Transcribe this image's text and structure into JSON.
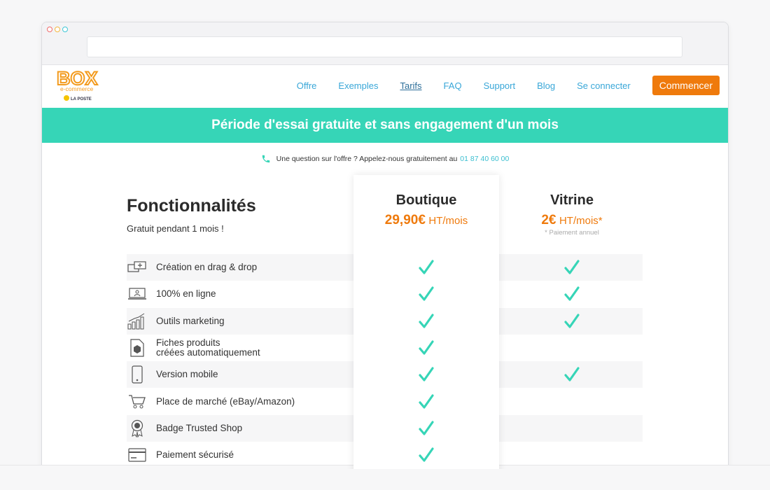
{
  "nav": {
    "logo_brand": "BOX",
    "logo_sub": "e-commerce",
    "logo_partner": "LA POSTE",
    "links": [
      "Offre",
      "Exemples",
      "Tarifs",
      "FAQ",
      "Support",
      "Blog",
      "Se connecter"
    ],
    "active_link": "Tarifs",
    "cta": "Commencer"
  },
  "banner": {
    "text": "Période d'essai gratuite et sans engagement d'un mois"
  },
  "contact": {
    "text": "Une question sur l'offre ? Appelez-nous gratuitement au",
    "phone": "01 87 40 60 00"
  },
  "features": {
    "title": "Fonctionnalités",
    "subtitle": "Gratuit pendant 1 mois !",
    "rows": [
      {
        "label": "Création en drag & drop",
        "icon": "drag-drop-icon",
        "boutique": true,
        "vitrine": true
      },
      {
        "label": "100% en ligne",
        "icon": "laptop-icon",
        "boutique": true,
        "vitrine": true
      },
      {
        "label": "Outils marketing",
        "icon": "bar-chart-icon",
        "boutique": true,
        "vitrine": true
      },
      {
        "label_line1": "Fiches produits",
        "label_line2": "créées automatiquement",
        "icon": "document-box-icon",
        "boutique": true,
        "vitrine": false
      },
      {
        "label": "Version mobile",
        "icon": "smartphone-icon",
        "boutique": true,
        "vitrine": true
      },
      {
        "label": "Place de marché (eBay/Amazon)",
        "icon": "cart-icon",
        "boutique": true,
        "vitrine": false
      },
      {
        "label": "Badge Trusted Shop",
        "icon": "badge-icon",
        "boutique": true,
        "vitrine": false
      },
      {
        "label": "Paiement sécurisé",
        "icon": "credit-card-icon",
        "boutique": true,
        "vitrine": false
      }
    ]
  },
  "plans": {
    "boutique": {
      "name": "Boutique",
      "price": "29,90€",
      "unit": "HT/mois"
    },
    "vitrine": {
      "name": "Vitrine",
      "price": "2€",
      "unit": "HT/mois*",
      "note": "* Paiement annuel"
    }
  },
  "colors": {
    "accent": "#36d5b7",
    "orange": "#ef7a0c",
    "link": "#39a7d8",
    "check": "#36d5b7"
  }
}
